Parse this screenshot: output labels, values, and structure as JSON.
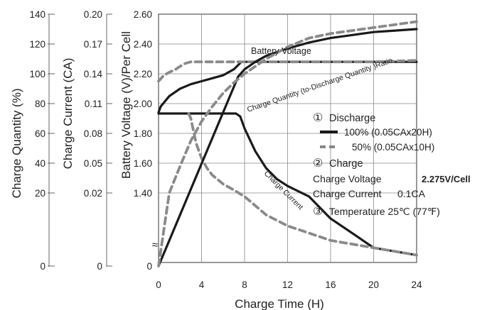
{
  "chart_data": {
    "type": "line",
    "xlabel": "Charge Time (H)",
    "x_ticks": [
      0,
      4,
      8,
      12,
      16,
      20,
      24
    ],
    "xlim": [
      0,
      24
    ],
    "axes": {
      "voltage": {
        "label": "Battery Voltage (V)/Per Cell",
        "ticks": [
          "2.60",
          "2.40",
          "2.20",
          "2.00",
          "1.80",
          "1.60",
          "1.40"
        ],
        "bottom_tick": "0",
        "break_mark": "≈"
      },
      "current": {
        "label": "Charge Current (CA)",
        "ticks": [
          "0.20",
          "0.17",
          "0.14",
          "0.11",
          "0.08",
          "0.05",
          "0.02"
        ],
        "bottom_tick": "0"
      },
      "quantity": {
        "label": "Charge Quantity (%)",
        "ticks": [
          "140",
          "120",
          "100",
          "80",
          "60",
          "40",
          "20"
        ],
        "bottom_tick": "0"
      }
    },
    "curve_labels": {
      "voltage": "Battery Voltage",
      "quantity": "Charge Quantity (to-Discharge Quantity )Ratio",
      "current": "Charge Current"
    },
    "legend": {
      "discharge_marker": "①",
      "discharge_title": "Discharge",
      "solid": "100% (0.05CAx20H)",
      "dashed": "50% (0.05CAx10H)",
      "charge_marker": "②",
      "charge_title": "Charge",
      "charge_voltage_label": "Charge Voltage",
      "charge_voltage_value": "2.275V/Cell",
      "charge_current_label": "Charge Current",
      "charge_current_value": "0.1CA",
      "temp_marker": "③",
      "temperature": "Temperature 25℃ (77℉)"
    },
    "series": [
      {
        "style": "solid",
        "quantity": "voltage",
        "x": [
          0,
          0.2,
          1,
          2,
          3,
          4,
          5,
          6,
          7,
          7.7,
          8,
          12,
          16,
          20,
          24
        ],
        "y": [
          1.94,
          1.98,
          2.05,
          2.1,
          2.13,
          2.15,
          2.17,
          2.19,
          2.23,
          2.28,
          2.28,
          2.28,
          2.28,
          2.28,
          2.28
        ]
      },
      {
        "style": "dashed",
        "quantity": "voltage",
        "x": [
          0,
          0.5,
          1,
          1.6,
          2,
          2.5,
          3,
          3.5,
          4,
          6,
          8,
          12,
          16,
          20,
          24
        ],
        "y": [
          2.15,
          2.19,
          2.21,
          2.23,
          2.25,
          2.27,
          2.28,
          2.28,
          2.28,
          2.28,
          2.28,
          2.28,
          2.28,
          2.28,
          2.29
        ]
      },
      {
        "style": "solid",
        "quantity": "current",
        "x": [
          0,
          0.2,
          7.2,
          7.6,
          8,
          9,
          10,
          11,
          12,
          14,
          16,
          18,
          20,
          22,
          24
        ],
        "y": [
          0.1,
          0.1,
          0.1,
          0.097,
          0.085,
          0.062,
          0.045,
          0.034,
          0.027,
          0.019,
          0.013,
          0.009,
          0.005,
          0.004,
          0.003
        ]
      },
      {
        "style": "dashed",
        "quantity": "current",
        "x": [
          2.8,
          3,
          3.2,
          3.5,
          4,
          4.5,
          5,
          6,
          7,
          8,
          10,
          12,
          14,
          16,
          18,
          20,
          22,
          24
        ],
        "y": [
          0.1,
          0.095,
          0.085,
          0.07,
          0.055,
          0.045,
          0.038,
          0.029,
          0.023,
          0.019,
          0.014,
          0.011,
          0.009,
          0.007,
          0.006,
          0.005,
          0.004,
          0.003
        ]
      },
      {
        "style": "solid",
        "quantity": "quantity",
        "x": [
          0,
          7.4,
          8,
          9,
          10,
          12,
          14,
          16,
          18,
          20,
          22,
          24
        ],
        "y": [
          0,
          98,
          103,
          108,
          112,
          117,
          121,
          124,
          126,
          128,
          129,
          130
        ]
      },
      {
        "style": "dashed",
        "quantity": "quantity",
        "x": [
          0,
          1,
          2,
          3,
          4,
          5,
          6,
          7,
          8,
          10,
          12,
          14,
          16,
          18,
          20,
          22,
          24
        ],
        "y": [
          0,
          20,
          38,
          55,
          68,
          78,
          87,
          94,
          100,
          110,
          118,
          124,
          127,
          129,
          131,
          133,
          135
        ]
      }
    ]
  }
}
